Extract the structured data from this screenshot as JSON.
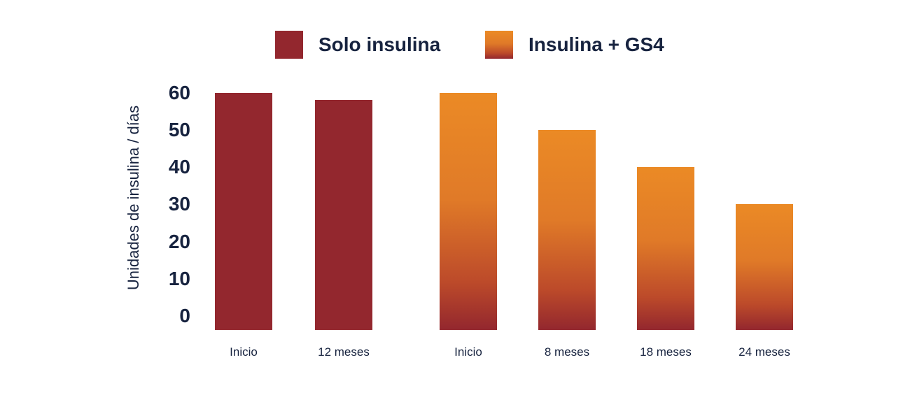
{
  "legend": {
    "items": [
      {
        "label": "Solo insulina"
      },
      {
        "label": "Insulina + GS4"
      }
    ]
  },
  "colors": {
    "dark_red": "#93272E",
    "orange_top": "#EB8A25",
    "orange_mid": "#E07A28",
    "orange_deep": "#BC4A2A",
    "orange_bottom": "#93272E",
    "text_navy": "#17233F",
    "background": "#FFFFFF"
  },
  "chart_data": {
    "type": "bar",
    "title": "",
    "ylabel": "Unidades de insulina / días",
    "xlabel": "",
    "ylim": [
      0,
      60
    ],
    "yticks": [
      0,
      10,
      20,
      30,
      40,
      50,
      60
    ],
    "grid": false,
    "legend_position": "top",
    "categories": [
      "Inicio",
      "12 meses",
      "Inicio",
      "8 meses",
      "18 meses",
      "24 meses"
    ],
    "series": [
      {
        "name": "Solo insulina",
        "fill": "solid",
        "color": "#93272E",
        "categories": [
          "Inicio",
          "12 meses"
        ],
        "values": [
          60,
          58
        ]
      },
      {
        "name": "Insulina + GS4",
        "fill": "gradient",
        "gradient_stops": [
          "#EB8A25 0%",
          "#E07A28 45%",
          "#BC4A2A 80%",
          "#93272E 100%"
        ],
        "categories": [
          "Inicio",
          "8 meses",
          "18 meses",
          "24 meses"
        ],
        "values": [
          60,
          50,
          40,
          30
        ]
      }
    ]
  }
}
